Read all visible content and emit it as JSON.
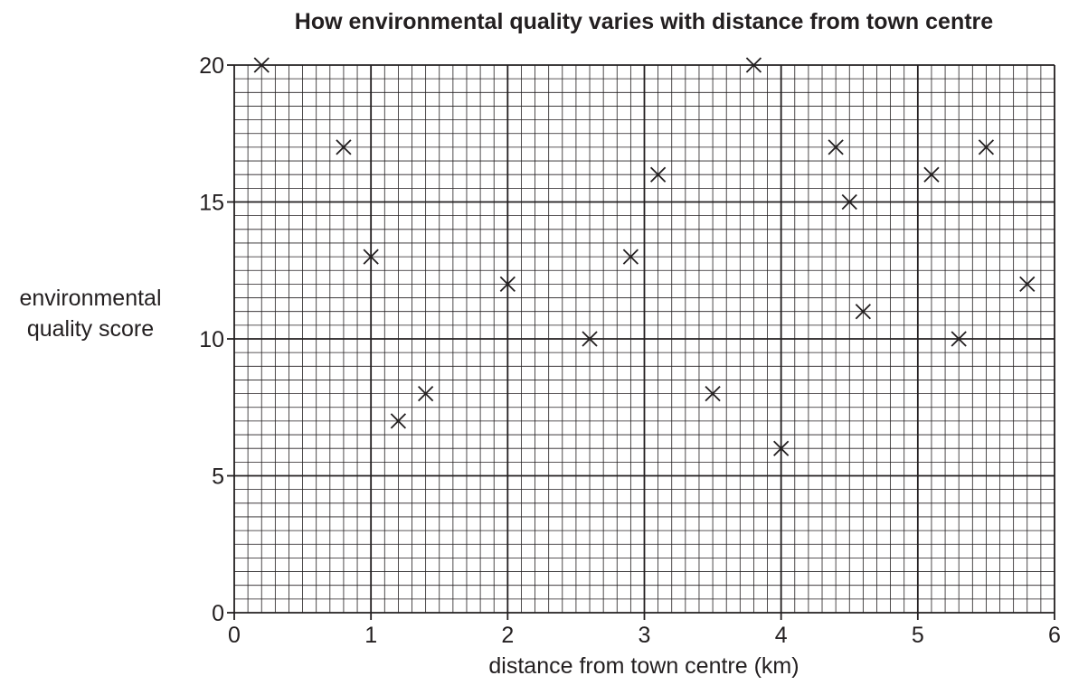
{
  "chart_data": {
    "type": "scatter",
    "title": "How environmental quality varies with distance from town centre",
    "xlabel": "distance from town centre (km)",
    "ylabel_lines": [
      "environmental",
      "quality score"
    ],
    "xlim": [
      0,
      6
    ],
    "ylim": [
      0,
      20
    ],
    "x_ticks": [
      0,
      1,
      2,
      3,
      4,
      5,
      6
    ],
    "y_ticks": [
      0,
      5,
      10,
      15,
      20
    ],
    "x_tick_labels": [
      "0",
      "1",
      "2",
      "3",
      "4",
      "5",
      "6"
    ],
    "y_tick_labels": [
      "0",
      "5",
      "10",
      "15",
      "20"
    ],
    "grid": true,
    "marker": "x",
    "points": [
      {
        "x": 0.2,
        "y": 20
      },
      {
        "x": 0.8,
        "y": 17
      },
      {
        "x": 1.0,
        "y": 13
      },
      {
        "x": 1.2,
        "y": 7
      },
      {
        "x": 1.4,
        "y": 8
      },
      {
        "x": 2.0,
        "y": 12
      },
      {
        "x": 2.6,
        "y": 10
      },
      {
        "x": 2.9,
        "y": 13
      },
      {
        "x": 3.1,
        "y": 16
      },
      {
        "x": 3.5,
        "y": 8
      },
      {
        "x": 3.8,
        "y": 20
      },
      {
        "x": 4.0,
        "y": 6
      },
      {
        "x": 4.4,
        "y": 17
      },
      {
        "x": 4.5,
        "y": 15
      },
      {
        "x": 4.6,
        "y": 11
      },
      {
        "x": 5.1,
        "y": 16
      },
      {
        "x": 5.3,
        "y": 10
      },
      {
        "x": 5.5,
        "y": 17
      },
      {
        "x": 5.8,
        "y": 12
      }
    ],
    "colors": {
      "ink": "#231f20",
      "background": "#ffffff"
    }
  }
}
